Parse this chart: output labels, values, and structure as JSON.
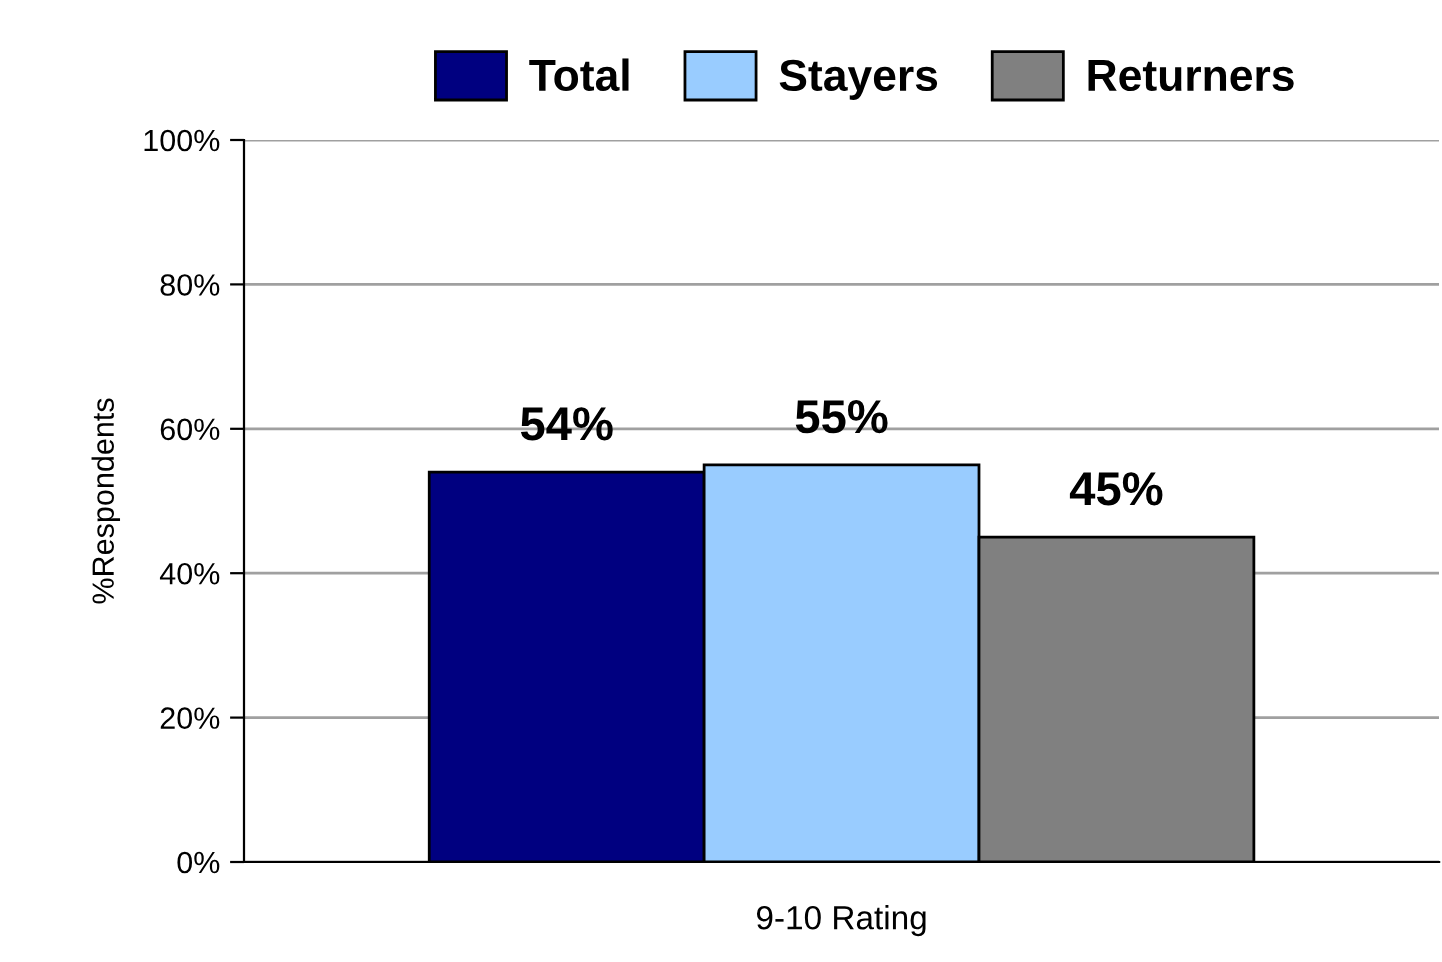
{
  "chart_data": {
    "type": "bar",
    "xlabel": "9-10 Rating",
    "ylabel": "%Respondents",
    "categories": [
      null
    ],
    "series": [
      {
        "name": "Total",
        "color": "#000080",
        "values": [
          54
        ],
        "value_labels": [
          "54%"
        ]
      },
      {
        "name": "Stayers",
        "color": "#99ccff",
        "values": [
          55
        ],
        "value_labels": [
          "55%"
        ]
      },
      {
        "name": "Returners",
        "color": "#808080",
        "values": [
          45
        ],
        "value_labels": [
          "45%"
        ]
      }
    ],
    "ylim": [
      0,
      100
    ],
    "yticks": [
      {
        "value": 0,
        "label": "0%"
      },
      {
        "value": 20,
        "label": "20%"
      },
      {
        "value": 40,
        "label": "40%"
      },
      {
        "value": 60,
        "label": "60%"
      },
      {
        "value": 80,
        "label": "80%"
      },
      {
        "value": 100,
        "label": "100%"
      }
    ],
    "grid": "y",
    "legend": "top"
  }
}
